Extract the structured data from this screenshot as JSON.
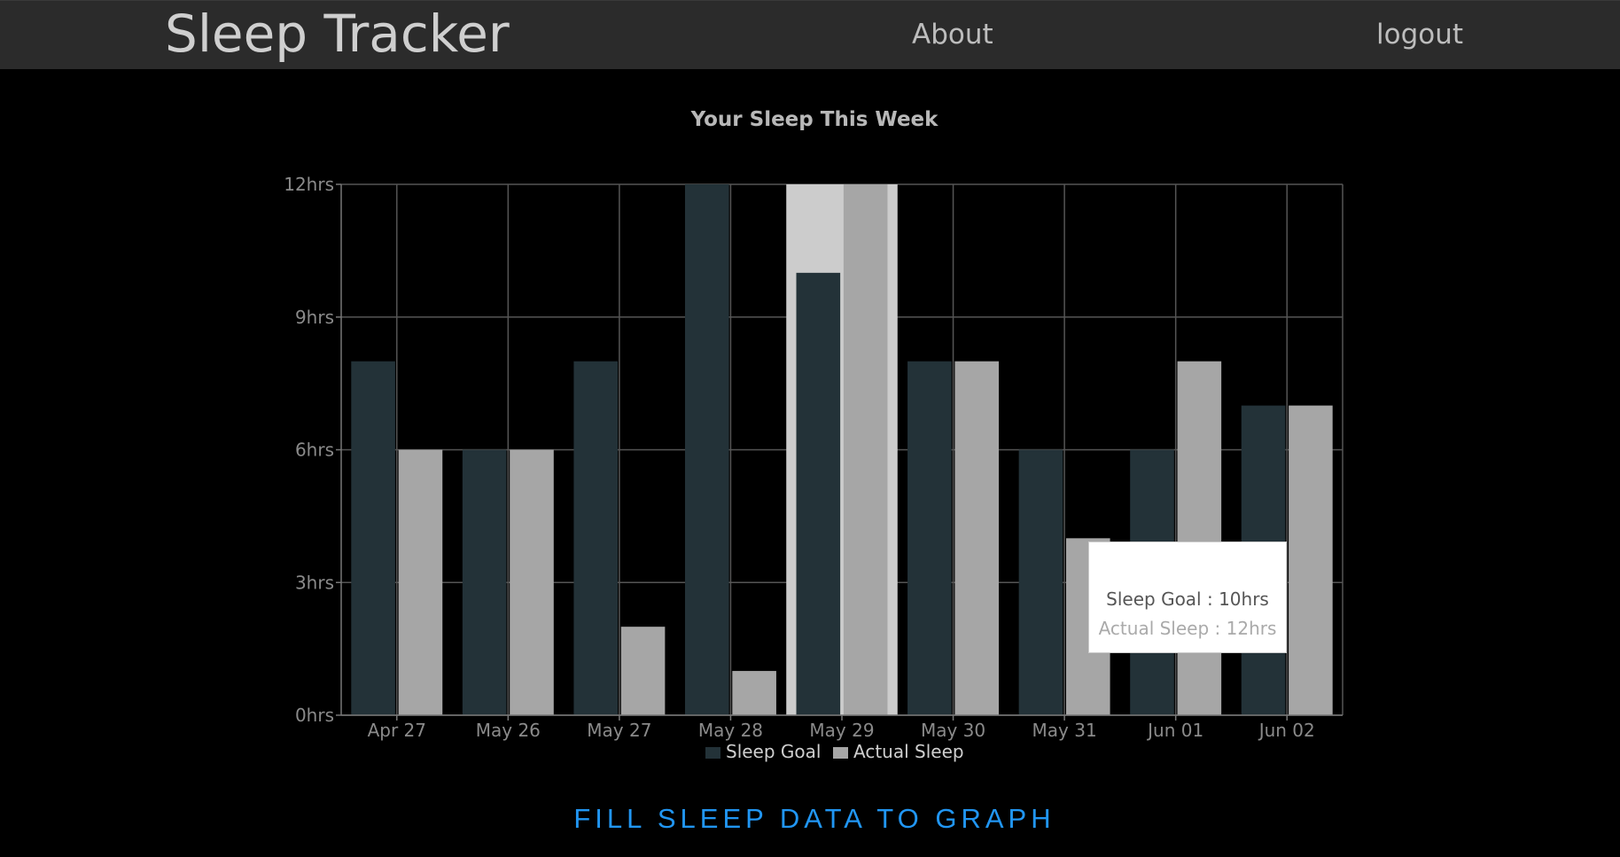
{
  "navbar": {
    "brand": "Sleep Tracker",
    "about_label": "About",
    "logout_label": "logout"
  },
  "chart_data": {
    "type": "bar",
    "title": "Your Sleep This Week",
    "categories": [
      "Apr 27",
      "May 26",
      "May 27",
      "May 28",
      "May 29",
      "May 30",
      "May 31",
      "Jun 01",
      "Jun 02"
    ],
    "series": [
      {
        "name": "Sleep Goal",
        "values": [
          8,
          6,
          8,
          12,
          10,
          8,
          6,
          6,
          7
        ],
        "color": "#233238"
      },
      {
        "name": "Actual Sleep",
        "values": [
          6,
          6,
          2,
          1,
          12,
          8,
          4,
          8,
          7
        ],
        "color": "#a6a6a6"
      }
    ],
    "ylim": [
      0,
      12
    ],
    "yticks": [
      0,
      3,
      6,
      9,
      12
    ],
    "ytick_labels": [
      "0hrs",
      "3hrs",
      "6hrs",
      "9hrs",
      "12hrs"
    ],
    "grid": true,
    "legend": "bottom-center",
    "highlighted_category": "May 29"
  },
  "tooltip": {
    "goal_text": "Sleep Goal : 10hrs",
    "actual_text": "Actual Sleep : 12hrs"
  },
  "cta": {
    "label": "FILL SLEEP DATA TO GRAPH"
  }
}
